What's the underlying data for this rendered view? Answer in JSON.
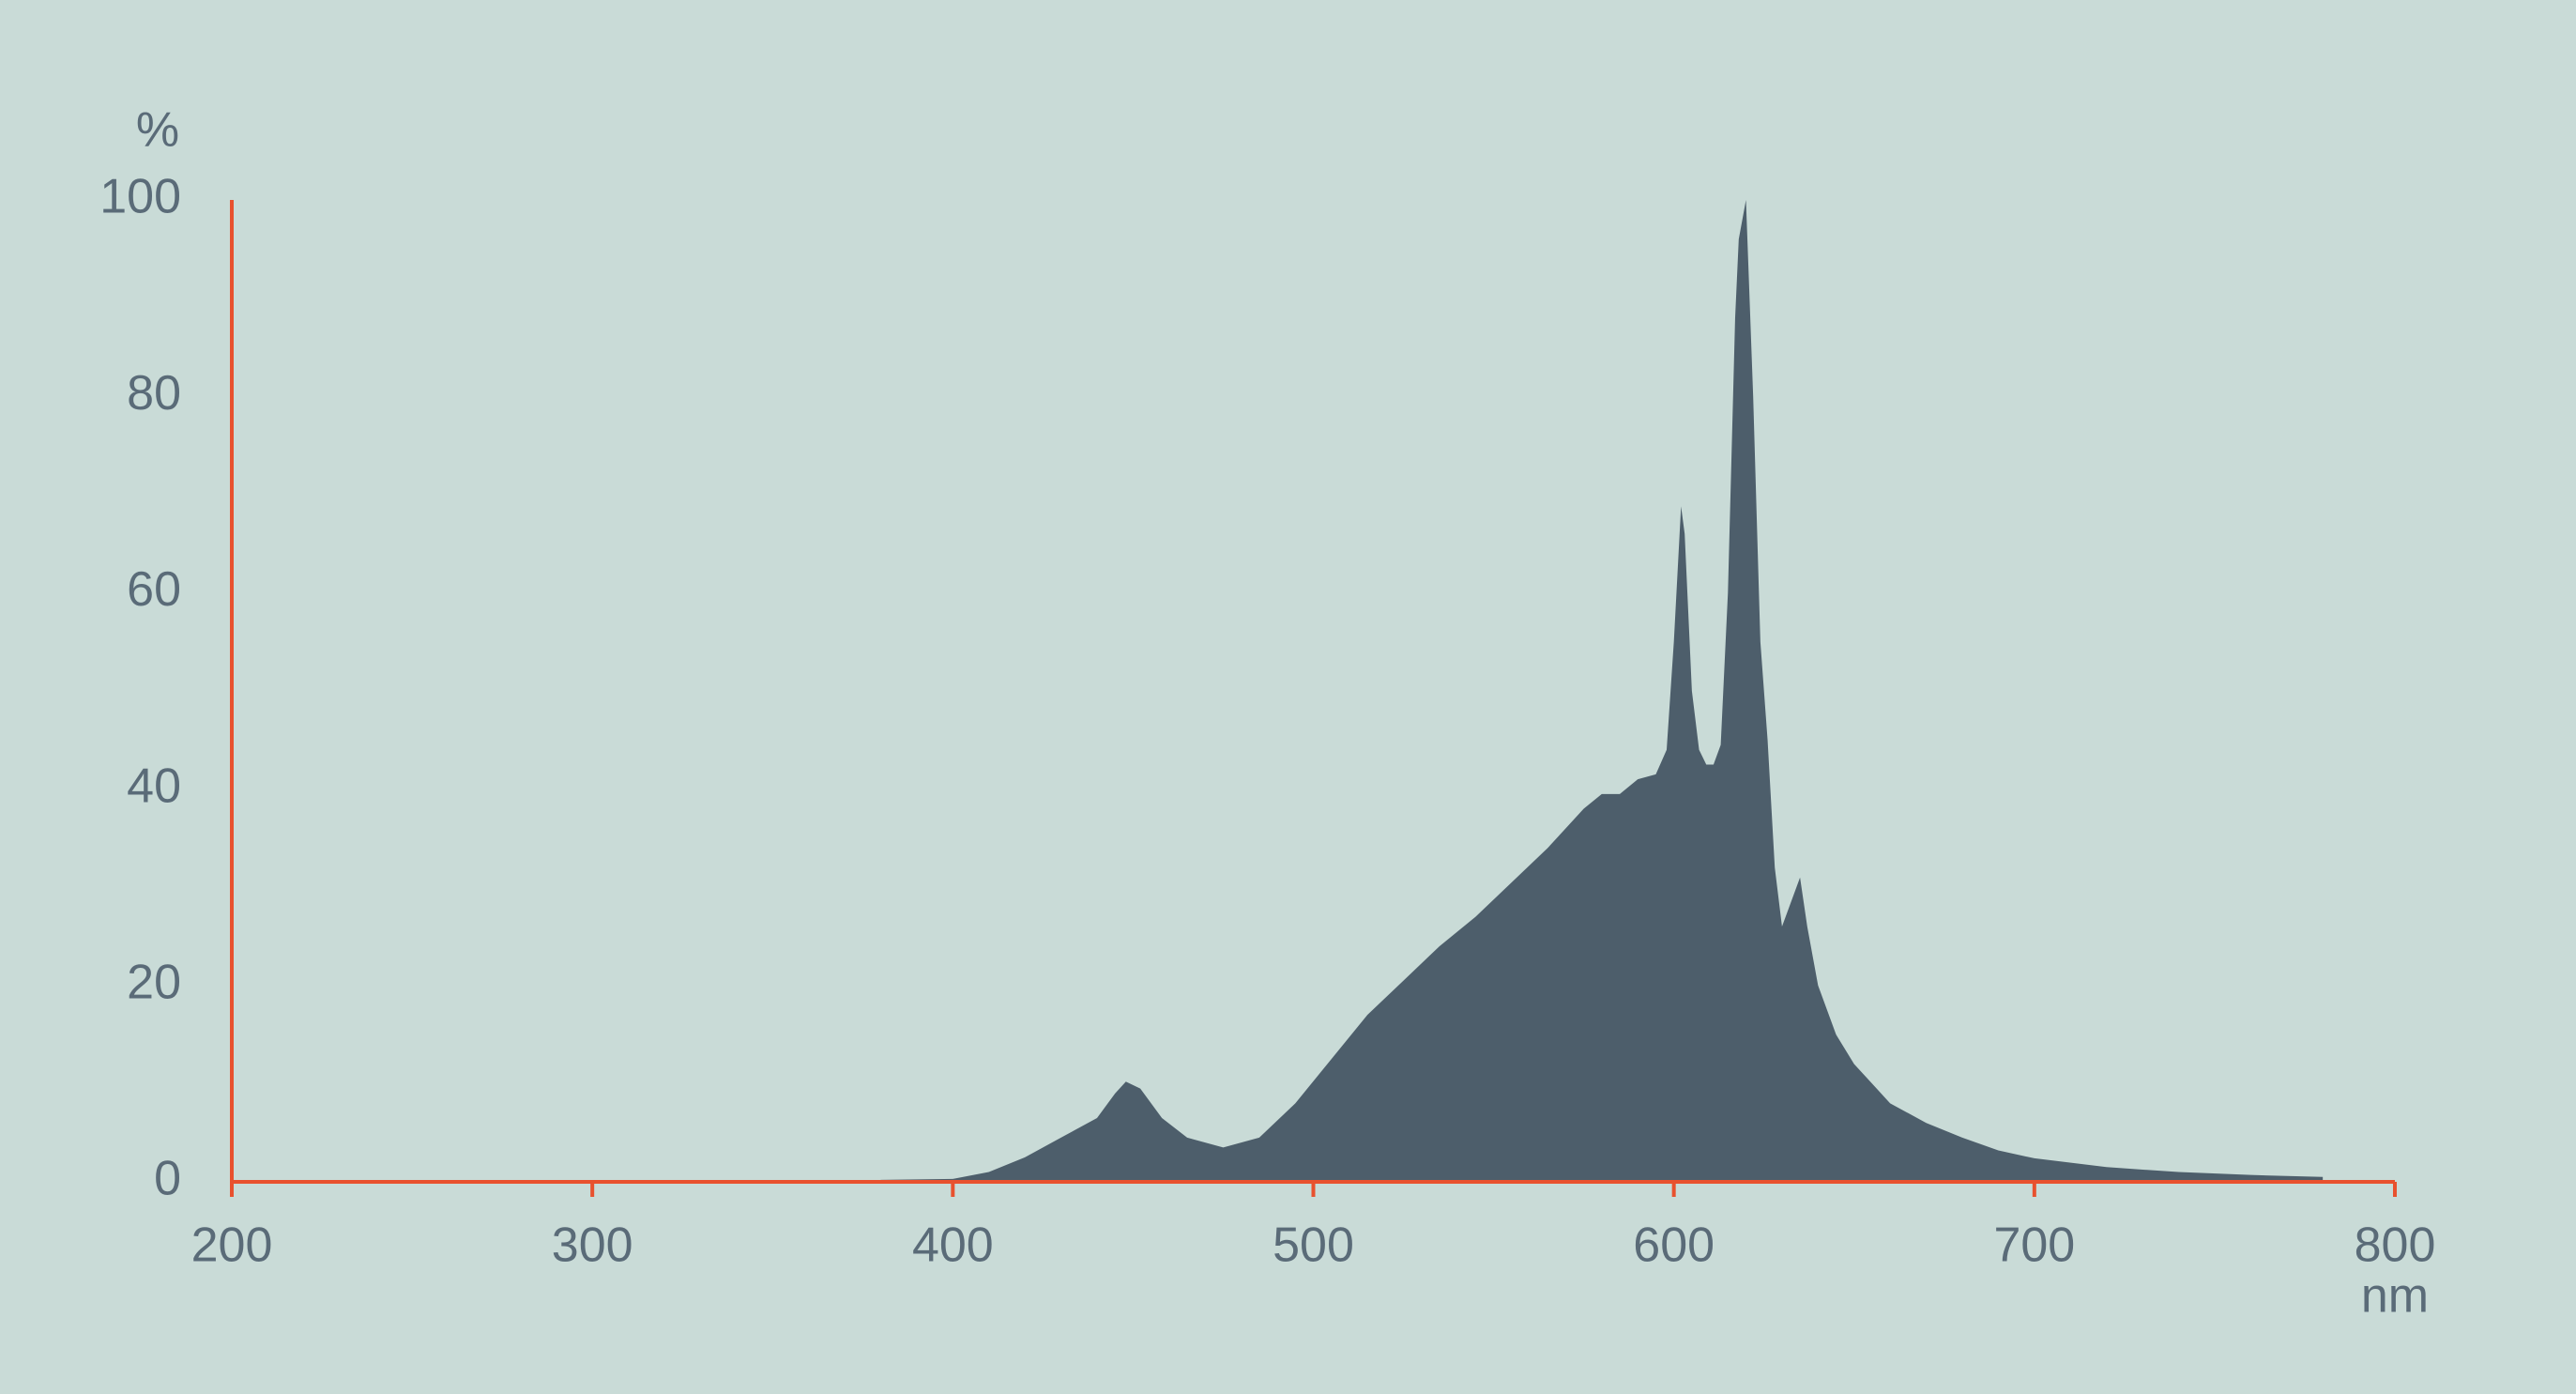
{
  "chart_data": {
    "type": "area",
    "y_label": "%",
    "x_label": "nm",
    "x": [
      380,
      400,
      410,
      420,
      430,
      440,
      445,
      448,
      452,
      458,
      465,
      475,
      485,
      495,
      505,
      515,
      525,
      535,
      545,
      555,
      565,
      575,
      580,
      585,
      590,
      595,
      598,
      600,
      602,
      603,
      605,
      607,
      609,
      611,
      613,
      615,
      617,
      618,
      620,
      622,
      624,
      626,
      628,
      630,
      632,
      635,
      637,
      640,
      645,
      650,
      655,
      660,
      670,
      680,
      690,
      700,
      720,
      740,
      760,
      780
    ],
    "values": [
      0.2,
      0.3,
      1,
      2.5,
      4.5,
      6.5,
      9,
      10.2,
      9.5,
      6.5,
      4.5,
      3.5,
      4.5,
      8,
      12.5,
      17,
      20.5,
      24,
      27,
      30.5,
      34,
      38,
      39.5,
      39.5,
      41,
      41.5,
      44,
      55,
      68.8,
      66,
      50,
      44,
      42.5,
      42.5,
      44.5,
      60,
      88,
      96,
      100,
      80,
      55,
      45,
      32,
      26,
      28,
      31,
      26,
      20,
      15,
      12,
      10,
      8,
      6,
      4.5,
      3.2,
      2.4,
      1.5,
      1,
      0.7,
      0.5
    ],
    "color": "#4d5e6b",
    "axis_color": "#e8512e",
    "xlim": [
      200,
      800
    ],
    "xticks": [
      200,
      300,
      400,
      500,
      600,
      700,
      800
    ],
    "ylim": [
      0,
      100
    ],
    "yticks": [
      0,
      20,
      40,
      60,
      80,
      100
    ]
  }
}
